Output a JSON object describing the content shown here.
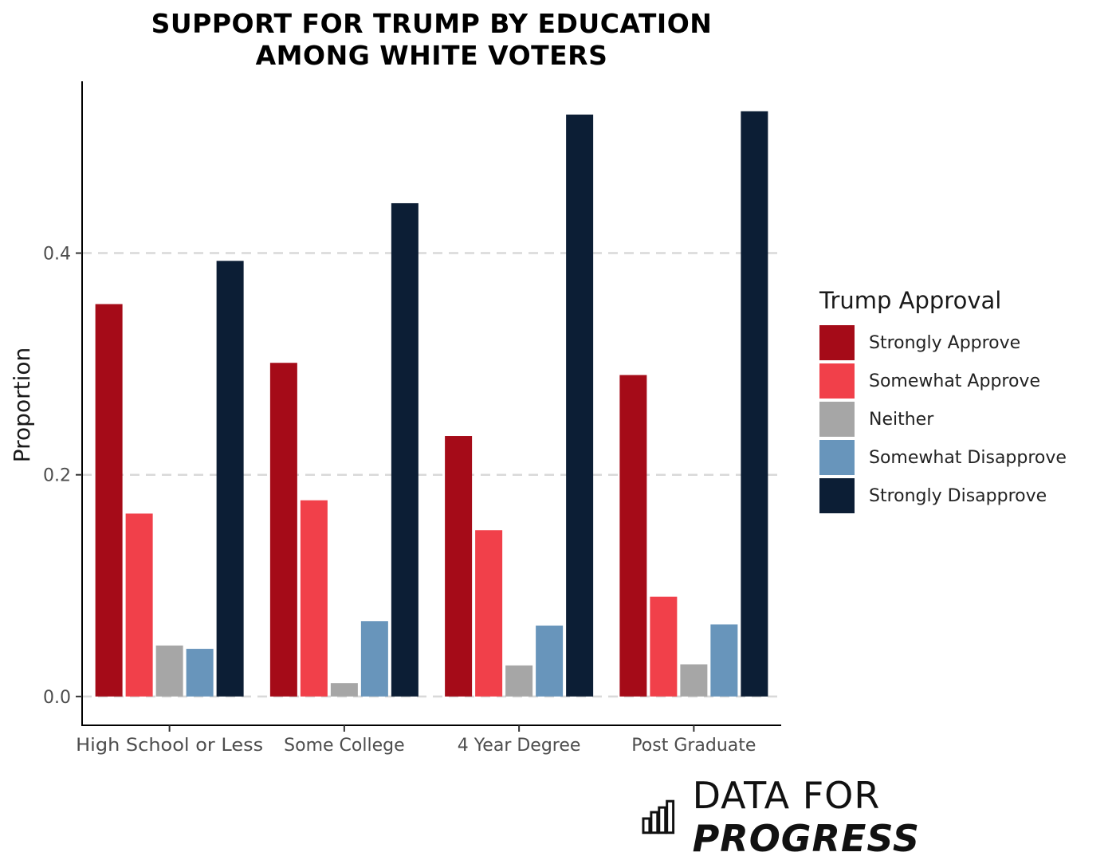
{
  "chart_data": {
    "type": "bar",
    "title": [
      "SUPPORT FOR TRUMP BY EDUCATION",
      "AMONG WHITE VOTERS"
    ],
    "xlabel": "",
    "ylabel": "Proportion",
    "ylim": [
      -0.026,
      0.555
    ],
    "yticks": [
      0.0,
      0.2,
      0.4
    ],
    "ytick_labels": [
      "0.0",
      "0.2",
      "0.4"
    ],
    "grid": "horizontal dashed",
    "categories": [
      "High School or Less",
      "Some College",
      "4 Year Degree",
      "Post Graduate"
    ],
    "series": [
      {
        "name": "Strongly Approve",
        "color": "#A50B18",
        "values": [
          0.354,
          0.301,
          0.235,
          0.29
        ]
      },
      {
        "name": "Somewhat Approve",
        "color": "#F1404A",
        "values": [
          0.165,
          0.177,
          0.15,
          0.09
        ]
      },
      {
        "name": "Neither",
        "color": "#A6A6A6",
        "values": [
          0.046,
          0.012,
          0.028,
          0.029
        ]
      },
      {
        "name": "Somewhat Disapprove",
        "color": "#6895BB",
        "values": [
          0.043,
          0.068,
          0.064,
          0.065
        ]
      },
      {
        "name": "Strongly Disapprove",
        "color": "#0C1E35",
        "values": [
          0.393,
          0.445,
          0.525,
          0.528
        ]
      }
    ],
    "legend": {
      "title": "Trump Approval",
      "position": "right"
    }
  },
  "brand": {
    "part1": "DATA FOR",
    "part2": "PROGRESS"
  }
}
